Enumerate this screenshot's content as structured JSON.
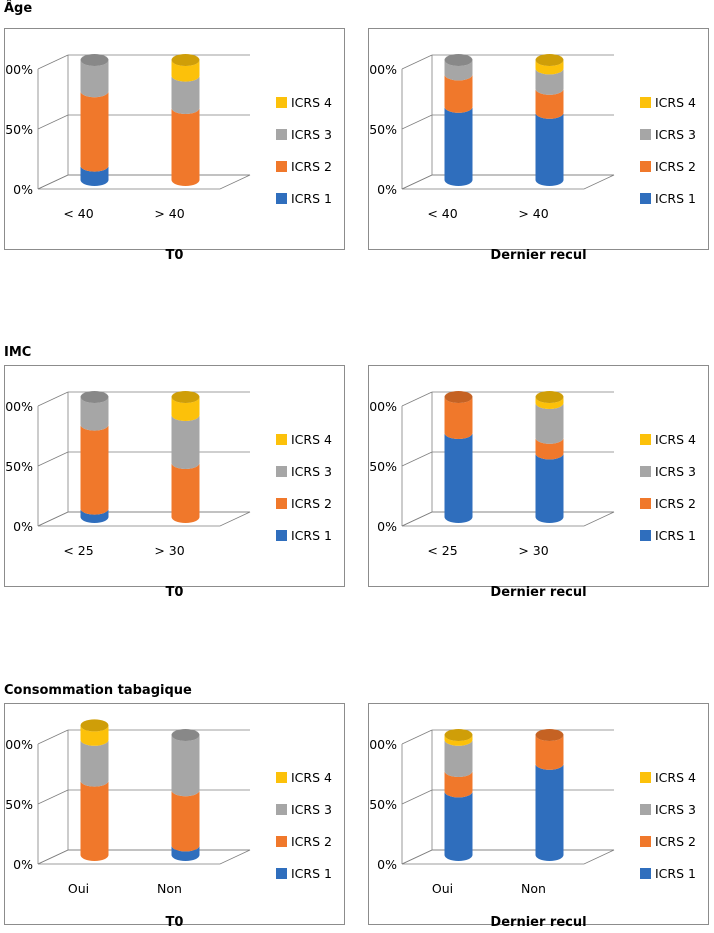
{
  "colors": {
    "ICRS 1": "#2f6ebd",
    "ICRS 2": "#f0782b",
    "ICRS 3": "#a6a6a6",
    "ICRS 4": "#fcc10a"
  },
  "sections": [
    {
      "title": "Âge"
    },
    {
      "title": "IMC"
    },
    {
      "title": "Consommation tabagique"
    }
  ],
  "chart_data": [
    {
      "type": "bar",
      "stacked": true,
      "section": "Âge",
      "caption": "T0",
      "categories": [
        "< 40",
        "> 40"
      ],
      "yticks": [
        "0%",
        "50%",
        "100%"
      ],
      "ylim": [
        0,
        100
      ],
      "legend": [
        "ICRS 4",
        "ICRS 3",
        "ICRS 2",
        "ICRS 1"
      ],
      "series": [
        {
          "name": "ICRS 1",
          "values": [
            12,
            0
          ]
        },
        {
          "name": "ICRS 2",
          "values": [
            62,
            60
          ]
        },
        {
          "name": "ICRS 3",
          "values": [
            26,
            27
          ]
        },
        {
          "name": "ICRS 4",
          "values": [
            0,
            13
          ]
        }
      ]
    },
    {
      "type": "bar",
      "stacked": true,
      "section": "Âge",
      "caption": "Dernier recul",
      "categories": [
        "< 40",
        "> 40"
      ],
      "yticks": [
        "0%",
        "50%",
        "100%"
      ],
      "ylim": [
        0,
        100
      ],
      "legend": [
        "ICRS 4",
        "ICRS 3",
        "ICRS 2",
        "ICRS 1"
      ],
      "series": [
        {
          "name": "ICRS 1",
          "values": [
            61,
            56
          ]
        },
        {
          "name": "ICRS 2",
          "values": [
            27,
            20
          ]
        },
        {
          "name": "ICRS 3",
          "values": [
            12,
            17
          ]
        },
        {
          "name": "ICRS 4",
          "values": [
            0,
            7
          ]
        }
      ]
    },
    {
      "type": "bar",
      "stacked": true,
      "section": "IMC",
      "caption": "T0",
      "categories": [
        "< 25",
        "> 30"
      ],
      "yticks": [
        "0%",
        "50%",
        "100%"
      ],
      "ylim": [
        0,
        100
      ],
      "legend": [
        "ICRS 4",
        "ICRS 3",
        "ICRS 2",
        "ICRS 1"
      ],
      "series": [
        {
          "name": "ICRS 1",
          "values": [
            7,
            0
          ]
        },
        {
          "name": "ICRS 2",
          "values": [
            70,
            45
          ]
        },
        {
          "name": "ICRS 3",
          "values": [
            23,
            40
          ]
        },
        {
          "name": "ICRS 4",
          "values": [
            0,
            15
          ]
        }
      ]
    },
    {
      "type": "bar",
      "stacked": true,
      "section": "IMC",
      "caption": "Dernier recul",
      "categories": [
        "< 25",
        "> 30"
      ],
      "yticks": [
        "0%",
        "50%",
        "100%"
      ],
      "ylim": [
        0,
        100
      ],
      "legend": [
        "ICRS 4",
        "ICRS 3",
        "ICRS 2",
        "ICRS 1"
      ],
      "series": [
        {
          "name": "ICRS 1",
          "values": [
            70,
            53
          ]
        },
        {
          "name": "ICRS 2",
          "values": [
            30,
            13
          ]
        },
        {
          "name": "ICRS 3",
          "values": [
            0,
            29
          ]
        },
        {
          "name": "ICRS 4",
          "values": [
            0,
            5
          ]
        }
      ]
    },
    {
      "type": "bar",
      "stacked": true,
      "section": "Consommation tabagique",
      "caption": "T0",
      "categories": [
        "Oui",
        "Non"
      ],
      "yticks": [
        "0%",
        "50%",
        "100%"
      ],
      "ylim": [
        0,
        100
      ],
      "legend": [
        "ICRS 4",
        "ICRS 3",
        "ICRS 2",
        "ICRS 1"
      ],
      "series": [
        {
          "name": "ICRS 1",
          "values": [
            0,
            8
          ]
        },
        {
          "name": "ICRS 2",
          "values": [
            62,
            46
          ]
        },
        {
          "name": "ICRS 3",
          "values": [
            34,
            46
          ]
        },
        {
          "name": "ICRS 4",
          "values": [
            12,
            0
          ]
        }
      ]
    },
    {
      "type": "bar",
      "stacked": true,
      "section": "Consommation tabagique",
      "caption": "Dernier recul",
      "categories": [
        "Oui",
        "Non"
      ],
      "yticks": [
        "0%",
        "50%",
        "100%"
      ],
      "ylim": [
        0,
        100
      ],
      "legend": [
        "ICRS 4",
        "ICRS 3",
        "ICRS 2",
        "ICRS 1"
      ],
      "series": [
        {
          "name": "ICRS 1",
          "values": [
            53,
            76
          ]
        },
        {
          "name": "ICRS 2",
          "values": [
            17,
            24
          ]
        },
        {
          "name": "ICRS 3",
          "values": [
            26,
            0
          ]
        },
        {
          "name": "ICRS 4",
          "values": [
            4,
            0
          ]
        }
      ]
    }
  ]
}
